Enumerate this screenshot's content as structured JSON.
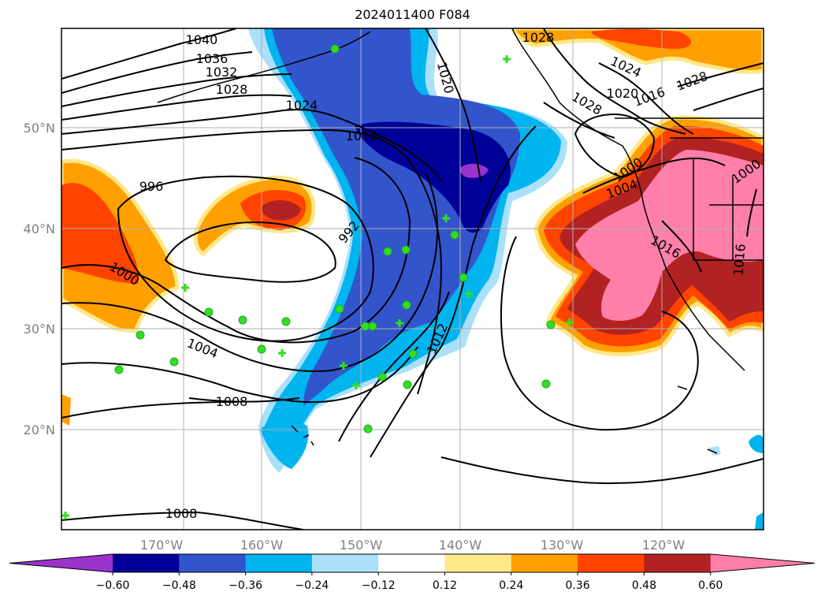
{
  "title": "2024011400 F084",
  "map": {
    "lat_labels": [
      "50°N",
      "40°N",
      "30°N",
      "20°N"
    ],
    "lon_labels": [
      "170°W",
      "160°W",
      "150°W",
      "140°W",
      "130°W",
      "120°W"
    ],
    "contour_labels": [
      "1040",
      "1036",
      "1032",
      "1028",
      "1024",
      "1016",
      "1020",
      "996",
      "992",
      "1000",
      "1004",
      "1008",
      "1008",
      "1012",
      "1028",
      "1024",
      "1020",
      "1016",
      "1028",
      "1028",
      "1000",
      "1004",
      "1016",
      "1016",
      "1000"
    ]
  },
  "colorbar": {
    "colors": [
      "#9933cc",
      "#000099",
      "#3355cc",
      "#00b4f0",
      "#aae0fa",
      "#ffffff",
      "#ffe88a",
      "#ffa000",
      "#ff4400",
      "#b22222",
      "#ff7fa8"
    ],
    "ticks": [
      "−0.60",
      "−0.48",
      "−0.36",
      "−0.24",
      "−0.12",
      "0.12",
      "0.24",
      "0.36",
      "0.48",
      "0.60"
    ]
  }
}
